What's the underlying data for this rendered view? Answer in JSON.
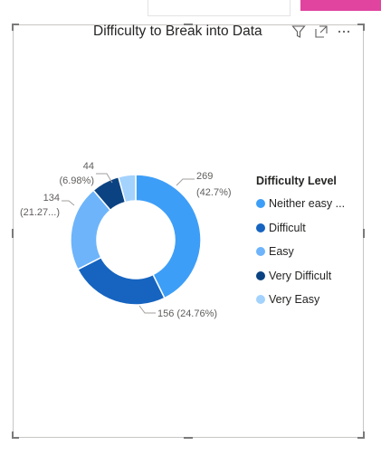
{
  "header": {
    "icons": [
      "filter-icon",
      "focus-mode-icon",
      "more-options-icon"
    ]
  },
  "chart_data": {
    "type": "pie",
    "title": "Difficulty to Break into Data",
    "legend_title": "Difficulty Level",
    "legend_position": "right",
    "slices": [
      {
        "label": "Neither easy ...",
        "value": 269,
        "data_label": [
          "269",
          "(42.7%)"
        ],
        "color": "#3d9ef7"
      },
      {
        "label": "Difficult",
        "value": 156,
        "data_label": [
          "156 (24.76%)"
        ],
        "color": "#1664c0"
      },
      {
        "label": "Easy",
        "value": 134,
        "data_label": [
          "134",
          "(21.27...)"
        ],
        "color": "#6db4fb"
      },
      {
        "label": "Very Difficult",
        "value": 44,
        "data_label": [
          "44",
          "(6.98%)"
        ],
        "color": "#0b4382"
      },
      {
        "label": "Very Easy",
        "value": 27,
        "data_label": [],
        "color": "#a3d2fd"
      }
    ]
  }
}
